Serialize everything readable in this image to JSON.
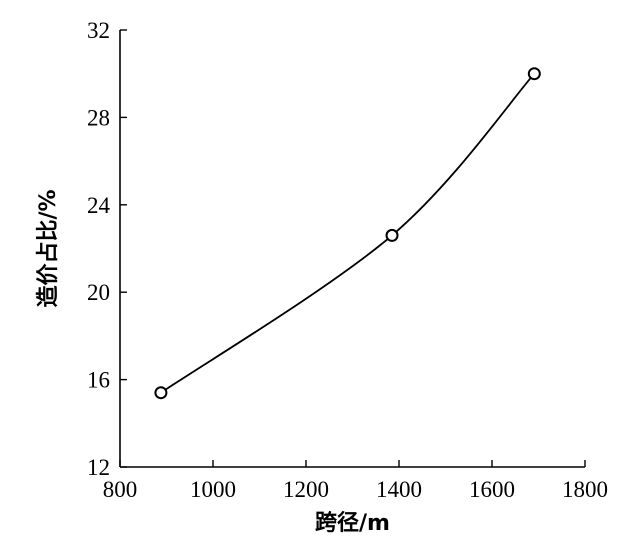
{
  "chart_data": {
    "type": "line",
    "title": "",
    "xlabel": "跨径/m",
    "ylabel": "造价占比/%",
    "xlim": [
      800,
      1800
    ],
    "ylim": [
      12,
      32
    ],
    "x_ticks": [
      800,
      1000,
      1200,
      1400,
      1600,
      1800
    ],
    "y_ticks": [
      12,
      16,
      20,
      24,
      28,
      32
    ],
    "grid": false,
    "legend": "none",
    "series": [
      {
        "x": [
          888,
          1385,
          1691
        ],
        "y": [
          15.4,
          22.6,
          30.0
        ],
        "marker": "open-circle",
        "line": "smooth"
      }
    ],
    "colors": {
      "line": "#000000",
      "marker_fill": "#ffffff"
    }
  }
}
